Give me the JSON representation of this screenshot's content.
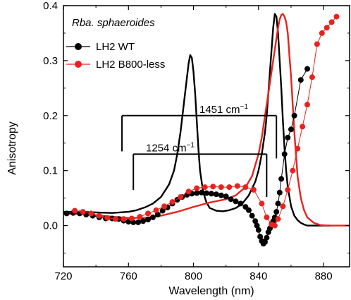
{
  "chart_data": {
    "type": "line",
    "title": "",
    "xlabel": "Wavelength (nm)",
    "ylabel": "Anisotropy",
    "xlim": [
      720,
      896
    ],
    "ylim": [
      -0.075,
      0.4
    ],
    "x_ticks": [
      720,
      760,
      800,
      840,
      880
    ],
    "y_ticks": [
      0.0,
      0.1,
      0.2,
      0.3,
      0.4
    ],
    "x_tick_labels": [
      "720",
      "760",
      "800",
      "840",
      "880"
    ],
    "y_tick_labels": [
      "0.0",
      "0.1",
      "0.2",
      "0.3",
      "0.4"
    ],
    "grid": false,
    "legend_position": "top-left",
    "annotation_sample": "Rba. sphaeroides",
    "annotations": [
      {
        "text": "1451 cm",
        "superscript": "−1",
        "x_start": 756,
        "x_end": 851,
        "y": 0.2,
        "tick_len": 0.065
      },
      {
        "text": "1254 cm",
        "superscript": "−1",
        "x_start": 763,
        "x_end": 845,
        "y": 0.13,
        "tick_len": 0.065
      }
    ],
    "series": [
      {
        "name": "LH2 WT",
        "color": "#000000",
        "kind": "scatter",
        "x": [
          722,
          726,
          730,
          734,
          738,
          742,
          746,
          750,
          754,
          757,
          760,
          763,
          766,
          769,
          772,
          775,
          778,
          781,
          784,
          787,
          790,
          793,
          796,
          799,
          802,
          805,
          808,
          811,
          814,
          817,
          820,
          823,
          826,
          829,
          832,
          834,
          836,
          838,
          839,
          840,
          841,
          842,
          843,
          844,
          845,
          846,
          847,
          848,
          849,
          850,
          851,
          852,
          853,
          854,
          856,
          858,
          860,
          862,
          866,
          870
        ],
        "y": [
          0.022,
          0.023,
          0.022,
          0.02,
          0.018,
          0.015,
          0.013,
          0.013,
          0.012,
          0.009,
          0.007,
          0.006,
          0.006,
          0.008,
          0.011,
          0.015,
          0.02,
          0.027,
          0.033,
          0.04,
          0.047,
          0.052,
          0.056,
          0.058,
          0.059,
          0.06,
          0.059,
          0.058,
          0.057,
          0.055,
          0.053,
          0.048,
          0.044,
          0.04,
          0.034,
          0.028,
          0.018,
          0.008,
          0.0,
          -0.008,
          -0.02,
          -0.028,
          -0.033,
          -0.03,
          -0.022,
          -0.012,
          -0.005,
          0.003,
          0.008,
          0.015,
          0.025,
          0.04,
          0.06,
          0.085,
          0.13,
          0.16,
          0.175,
          0.2,
          0.265,
          0.285
        ]
      },
      {
        "name": "LH2 B800-less",
        "color": "#e8231f",
        "kind": "scatter",
        "x": [
          727,
          732,
          737,
          742,
          747,
          752,
          757,
          762,
          767,
          772,
          777,
          782,
          787,
          792,
          797,
          802,
          807,
          812,
          817,
          822,
          827,
          832,
          837,
          842,
          845,
          848,
          850,
          852,
          855,
          858,
          861,
          864,
          867,
          870,
          873,
          876,
          879,
          882,
          885,
          888
        ],
        "y": [
          0.027,
          0.025,
          0.022,
          0.018,
          0.014,
          0.012,
          0.012,
          0.013,
          0.016,
          0.022,
          0.028,
          0.035,
          0.043,
          0.052,
          0.062,
          0.068,
          0.07,
          0.071,
          0.07,
          0.07,
          0.072,
          0.07,
          0.065,
          0.04,
          0.015,
          0.002,
          0.0,
          0.012,
          0.035,
          0.065,
          0.1,
          0.14,
          0.18,
          0.22,
          0.27,
          0.33,
          0.35,
          0.36,
          0.37,
          0.38
        ]
      },
      {
        "name": "WT absorption",
        "color": "#000000",
        "kind": "line",
        "x": [
          720,
          730,
          740,
          750,
          760,
          765,
          770,
          775,
          780,
          785,
          788,
          790,
          792,
          794,
          796,
          797,
          798,
          799,
          800,
          801,
          802,
          803,
          804,
          806,
          808,
          810,
          814,
          818,
          822,
          826,
          830,
          834,
          838,
          840,
          842,
          844,
          845,
          846,
          847,
          848,
          849,
          850,
          851,
          852,
          853,
          854,
          855,
          856,
          857,
          858,
          860,
          862,
          864,
          866,
          868,
          870,
          874,
          878,
          882,
          884
        ],
        "y": [
          0.025,
          0.025,
          0.024,
          0.023,
          0.025,
          0.028,
          0.033,
          0.04,
          0.052,
          0.075,
          0.1,
          0.13,
          0.17,
          0.22,
          0.27,
          0.295,
          0.31,
          0.305,
          0.28,
          0.24,
          0.19,
          0.14,
          0.1,
          0.06,
          0.042,
          0.032,
          0.027,
          0.026,
          0.028,
          0.032,
          0.04,
          0.055,
          0.08,
          0.1,
          0.13,
          0.17,
          0.2,
          0.24,
          0.28,
          0.32,
          0.36,
          0.385,
          0.38,
          0.35,
          0.3,
          0.25,
          0.19,
          0.14,
          0.1,
          0.07,
          0.035,
          0.018,
          0.01,
          0.005,
          0.002,
          0.0,
          0.0,
          0.0,
          0.0,
          0.0
        ]
      },
      {
        "name": "B800-less absorption",
        "color": "#e8231f",
        "kind": "line",
        "x": [
          720,
          730,
          740,
          750,
          760,
          770,
          780,
          790,
          800,
          810,
          820,
          826,
          832,
          836,
          840,
          842,
          844,
          846,
          848,
          850,
          852,
          853,
          854,
          855,
          856,
          857,
          858,
          859,
          860,
          861,
          862,
          863,
          864,
          866,
          868,
          870,
          874,
          878,
          882,
          888,
          896
        ],
        "y": [
          0.022,
          0.021,
          0.019,
          0.016,
          0.014,
          0.014,
          0.018,
          0.025,
          0.034,
          0.042,
          0.048,
          0.055,
          0.07,
          0.09,
          0.13,
          0.16,
          0.2,
          0.24,
          0.28,
          0.32,
          0.36,
          0.375,
          0.383,
          0.385,
          0.38,
          0.37,
          0.35,
          0.31,
          0.27,
          0.22,
          0.17,
          0.13,
          0.09,
          0.05,
          0.028,
          0.015,
          0.005,
          0.001,
          0.0,
          0.0,
          0.0
        ]
      }
    ]
  }
}
